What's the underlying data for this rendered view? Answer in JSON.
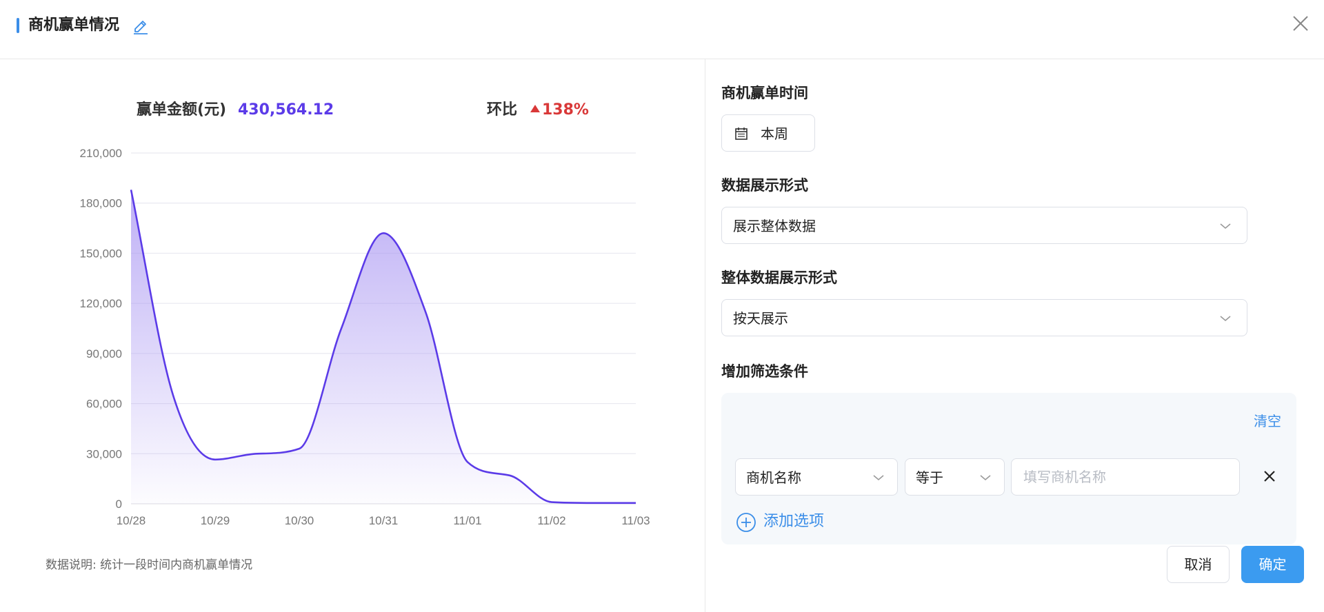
{
  "header": {
    "title": "商机赢单情况",
    "edit_icon": "edit-icon",
    "close_icon": "close-icon"
  },
  "summary": {
    "amount_label": "赢单金额(元)",
    "amount_value": "430,564.12",
    "ratio_label": "环比",
    "ratio_value": "138%",
    "ratio_direction": "up",
    "amount_color": "#5b3be8",
    "ratio_color": "#d93838"
  },
  "chart_data": {
    "type": "area",
    "title": "",
    "xlabel": "",
    "ylabel": "",
    "categories": [
      "10/28",
      "10/29",
      "10/30",
      "10/31",
      "11/01",
      "11/02",
      "11/03"
    ],
    "x": [
      0,
      0.5,
      1,
      1.5,
      2,
      2.5,
      3,
      3.5,
      4,
      4.5,
      5,
      5.5,
      6
    ],
    "values": [
      188000,
      65000,
      26500,
      30000,
      33000,
      105000,
      162000,
      115000,
      25000,
      17000,
      1000,
      500,
      500
    ],
    "yticks": [
      "0",
      "30,000",
      "60,000",
      "90,000",
      "120,000",
      "150,000",
      "180,000",
      "210,000"
    ],
    "ylim": [
      0,
      210000
    ],
    "grid": true,
    "line_color": "#5b3be8",
    "fill_color": "#a996f2"
  },
  "note": "数据说明: 统计一段时间内商机赢单情况",
  "form": {
    "time_label": "商机赢单时间",
    "time_value": "本周",
    "display_label": "数据展示形式",
    "display_value": "展示整体数据",
    "overall_label": "整体数据展示形式",
    "overall_value": "按天展示",
    "filter_label": "增加筛选条件",
    "clear_label": "清空",
    "filter_field": "商机名称",
    "filter_operator": "等于",
    "filter_placeholder": "填写商机名称",
    "add_option_label": "添加选项",
    "accent_color": "#3b8ee8"
  },
  "footer": {
    "cancel_label": "取消",
    "ok_label": "确定"
  }
}
